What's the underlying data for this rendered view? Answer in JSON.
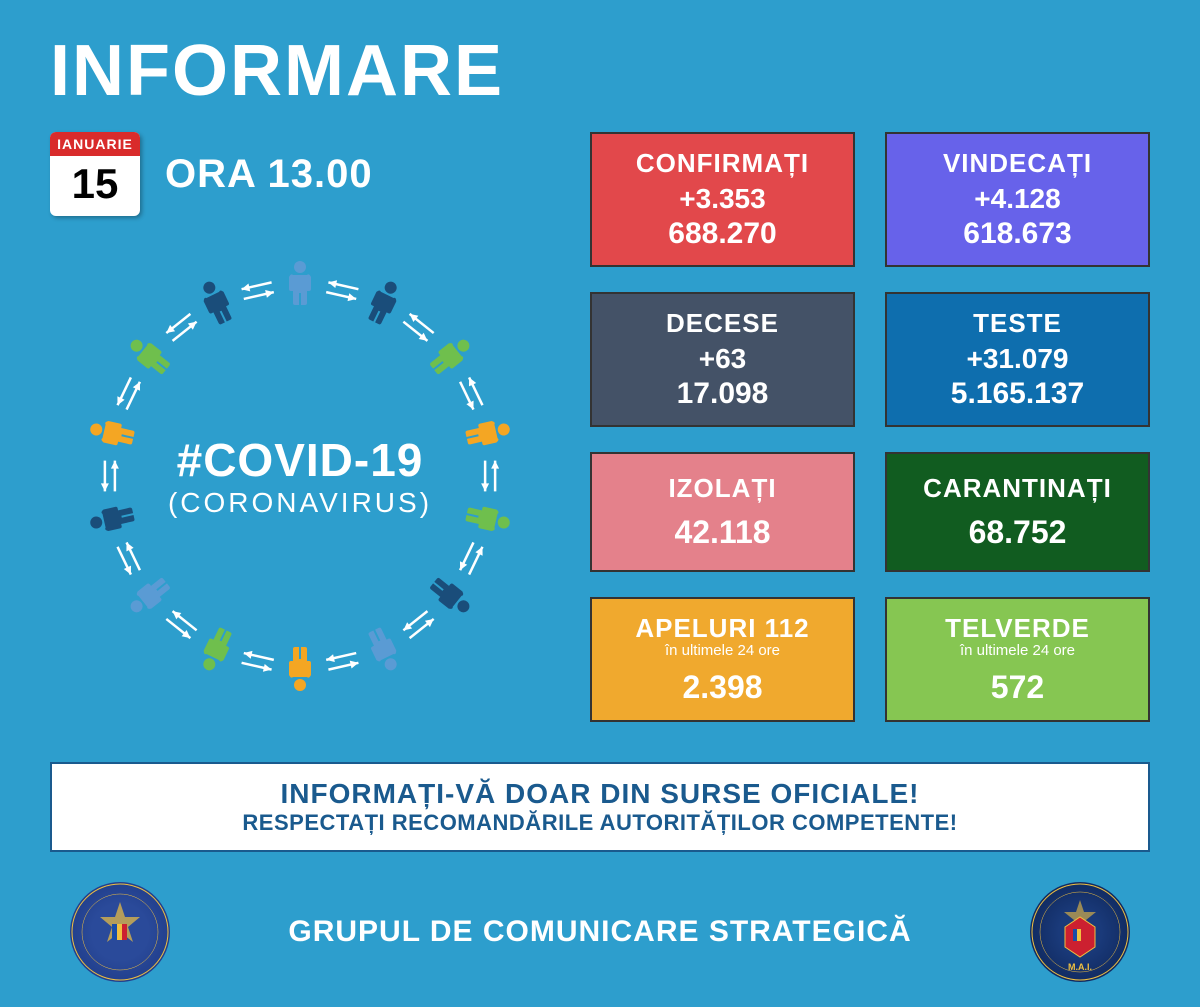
{
  "title": "INFORMARE",
  "calendar": {
    "month": "IANUARIE",
    "day": "15"
  },
  "time_label": "ORA 13.00",
  "circle": {
    "hashtag": "#COVID-19",
    "subtitle": "(CORONAVIRUS)",
    "person_colors": [
      "#5a9bd4",
      "#1a4d7a",
      "#6fbf4d",
      "#f4a623",
      "#6fbf4d",
      "#1a4d7a",
      "#5a9bd4",
      "#f4a623",
      "#6fbf4d",
      "#5a9bd4",
      "#1a4d7a",
      "#f4a623",
      "#6fbf4d",
      "#1a4d7a"
    ],
    "arrow_color": "#ffffff"
  },
  "stats": [
    {
      "label": "CONFIRMAȚI",
      "delta": "+3.353",
      "total": "688.270",
      "bg_color": "#e2484b",
      "text_color": "#ffffff"
    },
    {
      "label": "VINDECAȚI",
      "delta": "+4.128",
      "total": "618.673",
      "bg_color": "#6762ea",
      "text_color": "#ffffff"
    },
    {
      "label": "DECESE",
      "delta": "+63",
      "total": "17.098",
      "bg_color": "#445267",
      "text_color": "#ffffff"
    },
    {
      "label": "TESTE",
      "delta": "+31.079",
      "total": "5.165.137",
      "bg_color": "#0e6eae",
      "text_color": "#ffffff"
    },
    {
      "label": "IZOLAȚI",
      "single": "42.118",
      "bg_color": "#e4818b",
      "text_color": "#ffffff"
    },
    {
      "label": "CARANTINAȚI",
      "single": "68.752",
      "bg_color": "#115c20",
      "text_color": "#ffffff"
    },
    {
      "label": "APELURI 112",
      "sublabel": "în ultimele 24 ore",
      "single": "2.398",
      "bg_color": "#f0a92e",
      "text_color": "#ffffff"
    },
    {
      "label": "TELVERDE",
      "sublabel": "în ultimele 24 ore",
      "single": "572",
      "bg_color": "#86c652",
      "text_color": "#ffffff"
    }
  ],
  "banner": {
    "line1": "INFORMAȚI-VĂ DOAR DIN SURSE OFICIALE!",
    "line2": "RESPECTAȚI RECOMANDĂRILE AUTORITĂȚILOR COMPETENTE!",
    "bg_color": "#ffffff",
    "text_color": "#1a5a8e",
    "border_color": "#1a5a8e"
  },
  "footer": {
    "text": "GRUPUL DE COMUNICARE STRATEGICĂ",
    "logo_left_label": "GUVERNUL ROMÂNIEI",
    "logo_right_label": "M.A.I."
  },
  "styling": {
    "page_bg": "#2d9ecd",
    "title_color": "#ffffff",
    "time_color": "#ffffff",
    "footer_text_color": "#ffffff"
  }
}
